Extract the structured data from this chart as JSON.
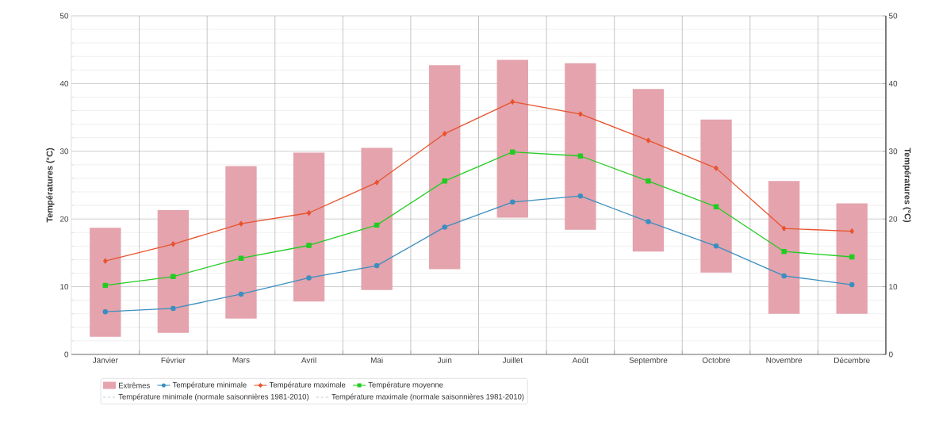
{
  "chart_data": {
    "type": "bar",
    "ylabel": "Températures (°C)",
    "y2label": "Températures (°C)",
    "categories": [
      "Janvier",
      "Février",
      "Mars",
      "Avril",
      "Mai",
      "Juin",
      "Juillet",
      "Août",
      "Septembre",
      "Octobre",
      "Novembre",
      "Décembre"
    ],
    "series": [
      {
        "name": "Extrêmes",
        "color": "#e4a3ad",
        "base": [
          2.6,
          3.2,
          5.3,
          7.8,
          9.5,
          12.6,
          20.2,
          18.4,
          15.2,
          12.1,
          6.0,
          6.0
        ],
        "values": [
          16.1,
          18.1,
          22.5,
          22.0,
          21.0,
          30.1,
          23.3,
          24.6,
          24.0,
          22.6,
          19.6,
          16.3
        ]
      },
      {
        "name": "Température minimale",
        "type": "line",
        "color": "#3a8fc0",
        "marker": "circle",
        "values": [
          6.3,
          6.8,
          8.9,
          11.3,
          13.1,
          18.8,
          22.5,
          23.4,
          19.6,
          16.0,
          11.6,
          10.3
        ]
      },
      {
        "name": "Température maximale",
        "type": "line",
        "color": "#e8532c",
        "marker": "diamond",
        "values": [
          13.8,
          16.3,
          19.3,
          20.9,
          25.4,
          32.6,
          37.3,
          35.5,
          31.6,
          27.5,
          18.6,
          18.2
        ]
      },
      {
        "name": "Température moyenne",
        "type": "line",
        "color": "#22cc22",
        "marker": "square",
        "values": [
          10.2,
          11.5,
          14.2,
          16.1,
          19.1,
          25.6,
          29.9,
          29.3,
          25.6,
          21.8,
          15.2,
          14.4
        ]
      },
      {
        "name": "Température minimale (normale saisonnières 1981-2010)",
        "type": "line",
        "color": "#a8d4ee",
        "line_style": "dashed",
        "values": [
          null,
          null,
          null,
          null,
          null,
          null,
          null,
          null,
          null,
          null,
          null,
          null
        ]
      },
      {
        "name": "Température maximale (normale saisonnières 1981-2010)",
        "type": "line",
        "color": "#cccccc",
        "line_style": "dashed",
        "values": [
          null,
          null,
          null,
          null,
          null,
          null,
          null,
          null,
          null,
          null,
          null,
          null
        ]
      }
    ],
    "ylim": [
      0,
      50
    ],
    "yticks": [
      0,
      10,
      20,
      30,
      40,
      50
    ],
    "y2lim": [
      0,
      50
    ],
    "y2ticks": [
      0,
      10,
      20,
      30,
      40,
      50
    ],
    "grid": true,
    "legend": "bottom"
  }
}
